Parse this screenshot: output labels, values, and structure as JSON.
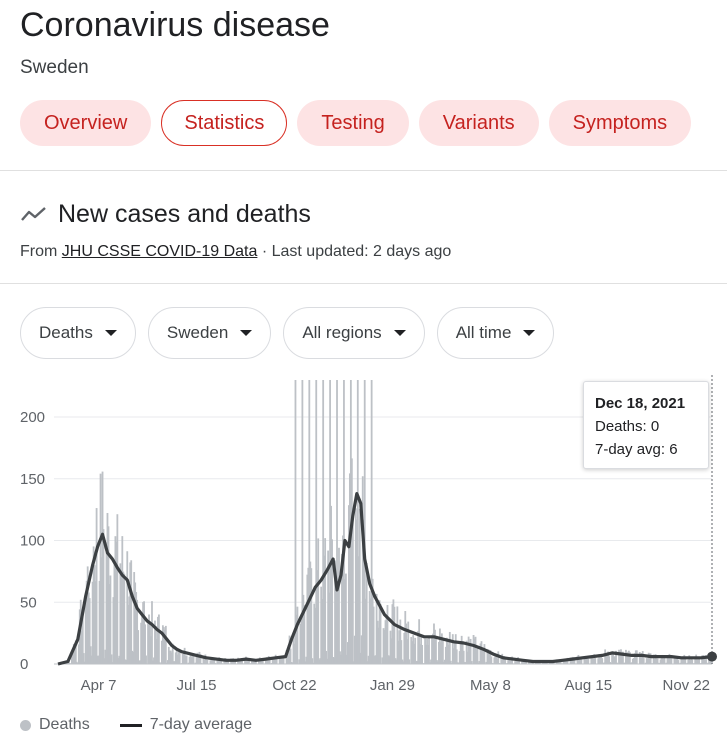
{
  "header": {
    "title": "Coronavirus disease",
    "location": "Sweden"
  },
  "tabs": [
    {
      "label": "Overview",
      "active": false
    },
    {
      "label": "Statistics",
      "active": true
    },
    {
      "label": "Testing",
      "active": false
    },
    {
      "label": "Variants",
      "active": false
    },
    {
      "label": "Symptoms",
      "active": false
    }
  ],
  "section": {
    "title": "New cases and deaths",
    "icon": "trending-line-icon",
    "source_prefix": "From",
    "source_link": "JHU CSSE COVID-19 Data",
    "updated": "· Last updated: 2 days ago"
  },
  "filters": [
    {
      "label": "Deaths"
    },
    {
      "label": "Sweden"
    },
    {
      "label": "All regions"
    },
    {
      "label": "All time"
    }
  ],
  "tooltip": {
    "date": "Dec 18, 2021",
    "deaths": "Deaths: 0",
    "avg": "7-day avg: 6"
  },
  "legend": {
    "bars": "Deaths",
    "line": "7-day average"
  },
  "colors": {
    "accent": "#d93025",
    "tab_bg": "#fde3e4",
    "bar": "#bdc1c6",
    "line": "#202124"
  },
  "chart_data": {
    "type": "bar",
    "ylim": [
      0,
      230
    ],
    "yticks": [
      "0",
      "50",
      "100",
      "150",
      "200"
    ],
    "xticks": [
      {
        "label": "Apr 7",
        "day": 41
      },
      {
        "label": "Jul 15",
        "day": 140
      },
      {
        "label": "Oct 22",
        "day": 239
      },
      {
        "label": "Jan 29",
        "day": 338
      },
      {
        "label": "May 8",
        "day": 437
      },
      {
        "label": "Aug 15",
        "day": 536
      },
      {
        "label": "Nov 22",
        "day": 635
      }
    ],
    "last_day": 661,
    "series": [
      {
        "name": "Deaths",
        "kind": "bars"
      },
      {
        "name": "7-day average",
        "kind": "line",
        "points": [
          [
            0,
            0
          ],
          [
            10,
            2
          ],
          [
            20,
            20
          ],
          [
            28,
            55
          ],
          [
            35,
            80
          ],
          [
            40,
            95
          ],
          [
            45,
            105
          ],
          [
            50,
            90
          ],
          [
            55,
            85
          ],
          [
            60,
            78
          ],
          [
            65,
            72
          ],
          [
            70,
            68
          ],
          [
            75,
            55
          ],
          [
            80,
            45
          ],
          [
            85,
            40
          ],
          [
            90,
            35
          ],
          [
            95,
            32
          ],
          [
            100,
            28
          ],
          [
            105,
            25
          ],
          [
            110,
            20
          ],
          [
            115,
            15
          ],
          [
            120,
            12
          ],
          [
            125,
            10
          ],
          [
            130,
            9
          ],
          [
            140,
            7
          ],
          [
            150,
            5
          ],
          [
            160,
            4
          ],
          [
            170,
            3
          ],
          [
            180,
            3
          ],
          [
            190,
            4
          ],
          [
            200,
            3
          ],
          [
            210,
            4
          ],
          [
            220,
            5
          ],
          [
            230,
            6
          ],
          [
            236,
            20
          ],
          [
            242,
            32
          ],
          [
            248,
            42
          ],
          [
            254,
            52
          ],
          [
            260,
            62
          ],
          [
            266,
            68
          ],
          [
            272,
            76
          ],
          [
            278,
            85
          ],
          [
            282,
            60
          ],
          [
            286,
            72
          ],
          [
            290,
            100
          ],
          [
            294,
            95
          ],
          [
            298,
            120
          ],
          [
            302,
            138
          ],
          [
            306,
            130
          ],
          [
            310,
            85
          ],
          [
            315,
            65
          ],
          [
            320,
            55
          ],
          [
            330,
            40
          ],
          [
            340,
            32
          ],
          [
            350,
            28
          ],
          [
            360,
            25
          ],
          [
            370,
            22
          ],
          [
            380,
            22
          ],
          [
            390,
            20
          ],
          [
            400,
            18
          ],
          [
            410,
            17
          ],
          [
            420,
            15
          ],
          [
            430,
            12
          ],
          [
            440,
            8
          ],
          [
            450,
            5
          ],
          [
            460,
            4
          ],
          [
            470,
            3
          ],
          [
            480,
            2
          ],
          [
            490,
            2
          ],
          [
            500,
            2
          ],
          [
            510,
            3
          ],
          [
            520,
            4
          ],
          [
            530,
            5
          ],
          [
            540,
            6
          ],
          [
            550,
            7
          ],
          [
            560,
            9
          ],
          [
            570,
            8
          ],
          [
            580,
            7
          ],
          [
            590,
            7
          ],
          [
            600,
            6
          ],
          [
            610,
            6
          ],
          [
            620,
            6
          ],
          [
            630,
            5
          ],
          [
            640,
            5
          ],
          [
            650,
            5
          ],
          [
            661,
            6
          ]
        ]
      }
    ]
  }
}
